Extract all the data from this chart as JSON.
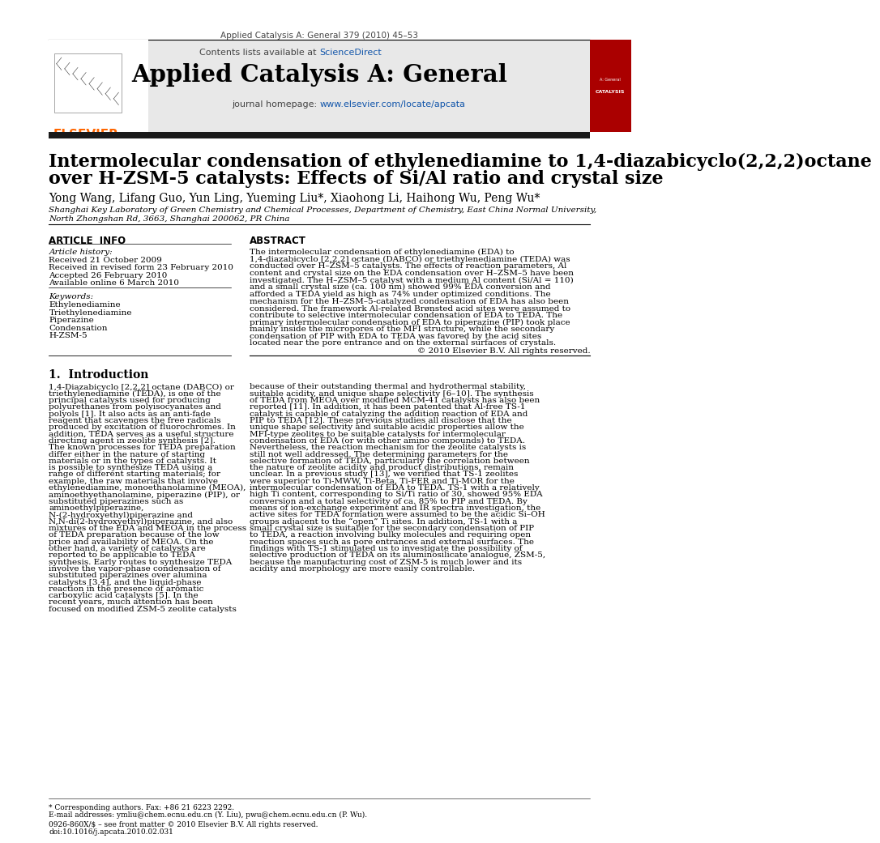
{
  "journal_line": "Applied Catalysis A: General 379 (2010) 45–53",
  "contents_line": "Contents lists available at ",
  "sciencedirect": "ScienceDirect",
  "journal_name": "Applied Catalysis A: General",
  "journal_homepage_prefix": "journal homepage: ",
  "journal_url": "www.elsevier.com/locate/apcata",
  "title_line1": "Intermolecular condensation of ethylenediamine to 1,4-diazabicyclo(2,2,2)octane",
  "title_line2": "over H-ZSM-5 catalysts: Effects of Si/Al ratio and crystal size",
  "authors": "Yong Wang, Lifang Guo, Yun Ling, Yueming Liu*, Xiaohong Li, Haihong Wu, Peng Wu*",
  "affiliation1": "Shanghai Key Laboratory of Green Chemistry and Chemical Processes, Department of Chemistry, East China Normal University,",
  "affiliation2": "North Zhongshan Rd, 3663, Shanghai 200062, PR China",
  "article_info_header": "ARTICLE  INFO",
  "abstract_header": "ABSTRACT",
  "article_history_label": "Article history:",
  "received": "Received 21 October 2009",
  "received_revised": "Received in revised form 23 February 2010",
  "accepted": "Accepted 26 February 2010",
  "available": "Available online 6 March 2010",
  "keywords_label": "Keywords:",
  "keywords": [
    "Ethylenediamine",
    "Triethylenediamine",
    "Piperazine",
    "Condensation",
    "H-ZSM-5"
  ],
  "abstract_text": "The intermolecular condensation of ethylenediamine (EDA) to 1,4-diazabicyclo [2,2,2] octane (DABCO) or triethylenediamine (TEDA) was conducted over H–ZSM–5 catalysts. The effects of reaction parameters, Al content and crystal size on the EDA condensation over H–ZSM–5 have been investigated. The H–ZSM–5 catalyst with a medium Al content (Si/Al = 110) and a small crystal size (ca. 100 nm) showed 99% EDA conversion and afforded a TEDA yield as high as 74% under optimized conditions. The mechanism for the H–ZSM–5-catalyzed condensation of EDA has also been considered. The framework Al-related Brønsted acid sites were assumed to contribute to selective intermolecular condensation of EDA to TEDA. The primary intermolecular condensation of EDA to piperazine (PIP) took place mainly inside the micropores of the MFI structure, while the secondary condensation of PIP with EDA to TEDA was favored by the acid sites located near the pore entrance and on the external surfaces of crystals.",
  "copyright": "© 2010 Elsevier B.V. All rights reserved.",
  "section1_title": "1.  Introduction",
  "intro_para1": "    1,4-Diazabicyclo [2,2,2] octane (DABCO) or triethylenediamine (TEDA), is one of the principal catalysts used for producing polyurethanes from polyisocyanates and polyols [1]. It also acts as an anti-fade reagent that scavenges the free radicals produced by excitation of fluorochromes. In addition, TEDA serves as a useful structure directing agent in zeolite synthesis [2]. The known processes for TEDA preparation differ either in the nature of starting materials or in the types of catalysts. It is possible to synthesize TEDA using a range of different starting materials; for example, the raw materials that involve ethylenediamine, monoethanolamine (MEOA),  aminoethyethanolamine,  piperazine  (PIP),  or substituted piperazines such as aminoethylpiperazine, N-(2-hydroxyethyl)piperazine and N,N-di(2-hydroxyethyl)piperazine, and also mixtures of the EDA and MEOA in the process of TEDA preparation because of the low price and availability of MEOA. On the other hand, a variety of catalysts are reported to be applicable to TEDA synthesis. Early routes to synthesize TEDA involve the vapor-phase condensation of substituted piperazines over alumina catalysts [3,4], and the liquid-phase reaction in the presence of aromatic carboxylic acid catalysts [5]. In the recent years, much attention has been focused on modified ZSM-5 zeolite catalysts",
  "intro_para2_right": "because of their outstanding thermal and hydrothermal stability, suitable acidity, and unique shape selectivity [6–10]. The synthesis of TEDA from MEOA over modified MCM-41 catalysts has also been reported [11]. In addition, it has been patented that Al-free TS-1 catalyst is capable of catalyzing the addition reaction of EDA and PIP to TEDA [12]. These previous studies all disclose that the unique shape selectivity and suitable acidic properties allow the MFI-type zeolites to be suitable catalysts for intermolecular condensation of EDA (or with other amino compounds) to TEDA. Nevertheless, the reaction mechanism for the zeolite catalysts is still not well addressed. The determining parameters for the selective formation of TEDA, particularly the correlation between the nature of zeolite acidity and product distributions, remain unclear.",
  "intro_para3_right": "    In a previous study [13], we verified that TS-1 zeolites were superior to Ti-MWW, Ti-Beta, Ti-FER and Ti-MOR for the intermolecular condensation of EDA to TEDA. TS-1 with a relatively high Ti content, corresponding to Si/Ti ratio of 30, showed 95% EDA conversion and a total selectivity of ca. 85% to PIP and TEDA. By means of ion-exchange experiment and IR spectra investigation, the active sites for TEDA formation were assumed to be the acidic Si–OH groups adjacent to the “open” Ti sites. In addition, TS-1 with a small crystal size is suitable for the secondary condensation of PIP to TEDA, a reaction involving bulky molecules and requiring open reaction spaces such as pore entrances and external surfaces. The findings with TS-1 stimulated us to investigate the possibility of selective production of TEDA on its aluminosilicate analogue, ZSM-5, because the manufacturing cost of ZSM-5 is much lower and its acidity and morphology are more easily controllable.",
  "footnote_star": "* Corresponding authors. Fax: +86 21 6223 2292.",
  "footnote_email": "E-mail addresses: ymliu@chem.ecnu.edu.cn (Y. Liu), pwu@chem.ecnu.edu.cn (P. Wu).",
  "footer_issn": "0926-860X/$ – see front matter © 2010 Elsevier B.V. All rights reserved.",
  "footer_doi": "doi:10.1016/j.apcata.2010.02.031",
  "header_bg": "#e8e8e8",
  "dark_bar_color": "#1a1a1a",
  "elsevier_orange": "#FF6600",
  "sciencedirect_blue": "#1155aa",
  "url_blue": "#1155aa",
  "text_color": "#000000"
}
